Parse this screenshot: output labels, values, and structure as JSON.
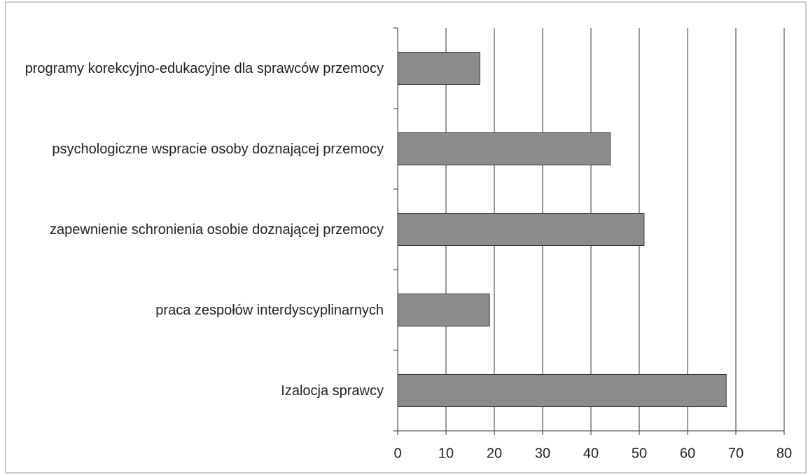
{
  "chart_data": {
    "type": "bar",
    "orientation": "horizontal",
    "categories": [
      "programy korekcyjno-edukacyjne dla sprawców przemocy",
      "psychologiczne wspracie osoby doznającej przemocy",
      "zapewnienie schronienia osobie doznającej przemocy",
      "praca zespołów interdyscyplinarnych",
      "Izalocja sprawcy"
    ],
    "values": [
      17,
      44,
      51,
      19,
      68
    ],
    "color": "#8c8c8c",
    "xlim": [
      0,
      80
    ],
    "xticks": [
      0,
      10,
      20,
      30,
      40,
      50,
      60,
      70,
      80
    ],
    "grid": true
  }
}
